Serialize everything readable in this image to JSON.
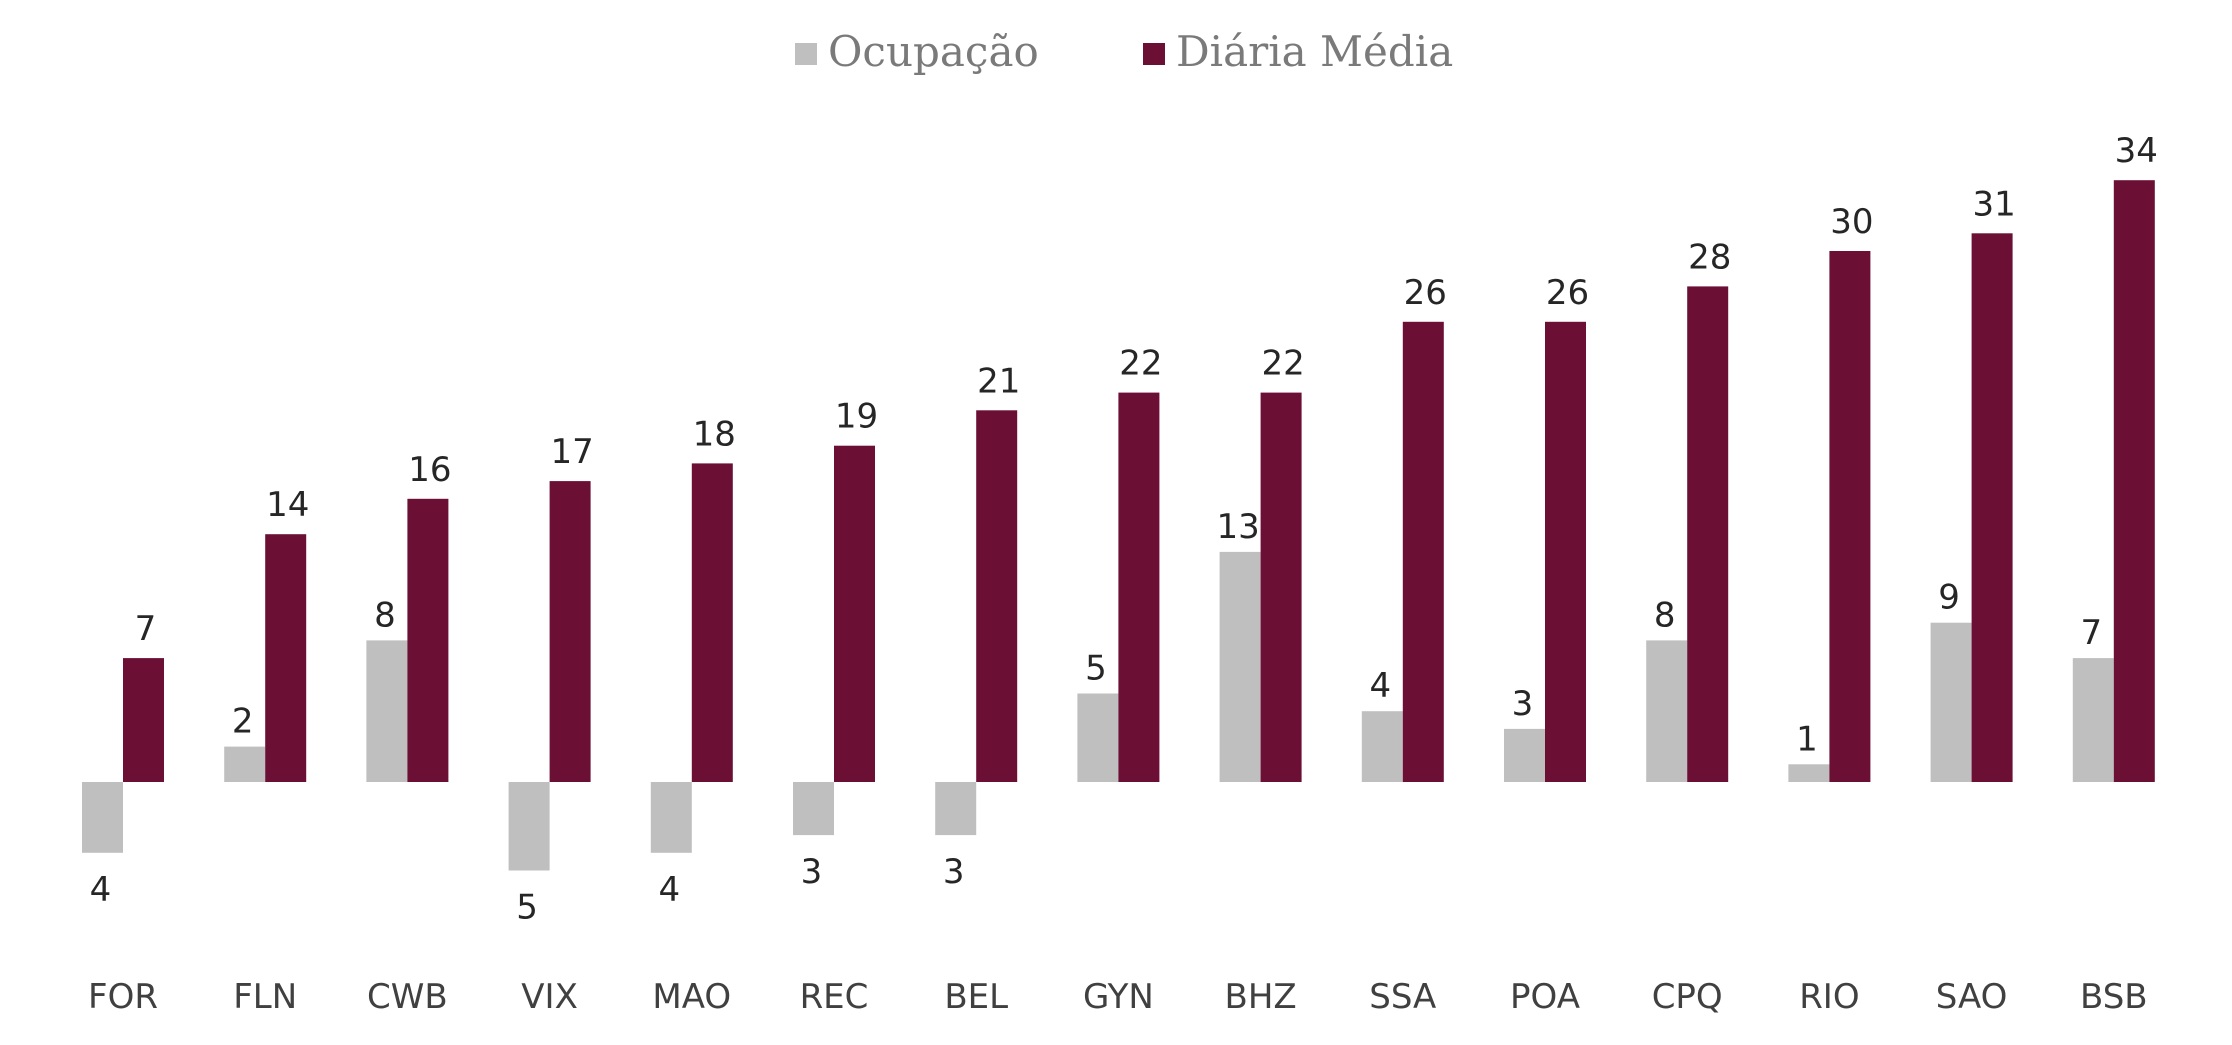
{
  "chart_data": {
    "type": "bar",
    "categories": [
      "FOR",
      "FLN",
      "CWB",
      "VIX",
      "MAO",
      "REC",
      "BEL",
      "GYN",
      "BHZ",
      "SSA",
      "POA",
      "CPQ",
      "RIO",
      "SAO",
      "BSB"
    ],
    "series": [
      {
        "name": "Ocupação",
        "color": "#bfbfbf",
        "values": [
          -4,
          2,
          8,
          -5,
          -4,
          -3,
          -3,
          5,
          13,
          4,
          3,
          8,
          1,
          9,
          7
        ],
        "labels": [
          "4",
          "2",
          "8",
          "5",
          "4",
          "3",
          "3",
          "5",
          "13",
          "4",
          "3",
          "8",
          "1",
          "9",
          "7"
        ]
      },
      {
        "name": "Diária Média",
        "color": "#6b0f35",
        "values": [
          7,
          14,
          16,
          17,
          18,
          19,
          21,
          22,
          22,
          26,
          26,
          28,
          30,
          31,
          34
        ],
        "labels": [
          "7",
          "14",
          "16",
          "17",
          "18",
          "19",
          "21",
          "22",
          "22",
          "26",
          "26",
          "28",
          "30",
          "31",
          "34"
        ]
      }
    ],
    "title": "",
    "xlabel": "",
    "ylabel": "",
    "ylim": [
      -5,
      34
    ],
    "grid": false,
    "legend": "top-center"
  }
}
